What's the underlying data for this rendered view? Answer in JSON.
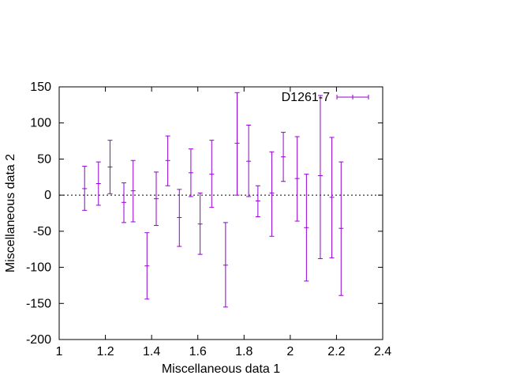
{
  "chart_data": {
    "type": "scatter",
    "title": "",
    "xlabel": "Miscellaneous data 1",
    "ylabel": "Miscellaneous data 2",
    "xlim": [
      1,
      2.4
    ],
    "ylim": [
      -200,
      150
    ],
    "grid": false,
    "legend_position": "top-right",
    "x_ticks": [
      "1",
      "1.2",
      "1.4",
      "1.6",
      "1.8",
      "2",
      "2.2",
      "2.4"
    ],
    "y_ticks": [
      "-200",
      "-150",
      "-100",
      "-50",
      "0",
      "50",
      "100",
      "150"
    ],
    "zero_line": true,
    "series": [
      {
        "name": "D1261-7",
        "color": "#9400d3",
        "points": [
          {
            "x": 1.11,
            "y": 9,
            "ylow": -21,
            "yhigh": 40
          },
          {
            "x": 1.17,
            "y": 16,
            "ylow": -14,
            "yhigh": 46
          },
          {
            "x": 1.22,
            "y": 39,
            "ylow": 2,
            "yhigh": 76
          },
          {
            "x": 1.28,
            "y": -10,
            "ylow": -38,
            "yhigh": 17
          },
          {
            "x": 1.32,
            "y": 6,
            "ylow": -37,
            "yhigh": 48
          },
          {
            "x": 1.38,
            "y": -98,
            "ylow": -144,
            "yhigh": -52
          },
          {
            "x": 1.42,
            "y": -5,
            "ylow": -42,
            "yhigh": 32
          },
          {
            "x": 1.47,
            "y": 48,
            "ylow": 13,
            "yhigh": 82
          },
          {
            "x": 1.52,
            "y": -31,
            "ylow": -71,
            "yhigh": 8
          },
          {
            "x": 1.57,
            "y": 31,
            "ylow": -2,
            "yhigh": 64
          },
          {
            "x": 1.61,
            "y": -40,
            "ylow": -82,
            "yhigh": 3
          },
          {
            "x": 1.66,
            "y": 29,
            "ylow": -17,
            "yhigh": 76
          },
          {
            "x": 1.72,
            "y": -97,
            "ylow": -155,
            "yhigh": -38
          },
          {
            "x": 1.77,
            "y": 72,
            "ylow": 0,
            "yhigh": 142
          },
          {
            "x": 1.82,
            "y": 47,
            "ylow": -2,
            "yhigh": 97
          },
          {
            "x": 1.86,
            "y": -8,
            "ylow": -30,
            "yhigh": 13
          },
          {
            "x": 1.92,
            "y": 3,
            "ylow": -57,
            "yhigh": 60
          },
          {
            "x": 1.97,
            "y": 53,
            "ylow": 19,
            "yhigh": 87
          },
          {
            "x": 2.03,
            "y": 23,
            "ylow": -36,
            "yhigh": 81
          },
          {
            "x": 2.07,
            "y": -45,
            "ylow": -119,
            "yhigh": 29
          },
          {
            "x": 2.13,
            "y": 27,
            "ylow": -88,
            "yhigh": 138
          },
          {
            "x": 2.18,
            "y": -3,
            "ylow": -87,
            "yhigh": 80
          },
          {
            "x": 2.22,
            "y": -46,
            "ylow": -139,
            "yhigh": 46
          }
        ]
      }
    ]
  }
}
